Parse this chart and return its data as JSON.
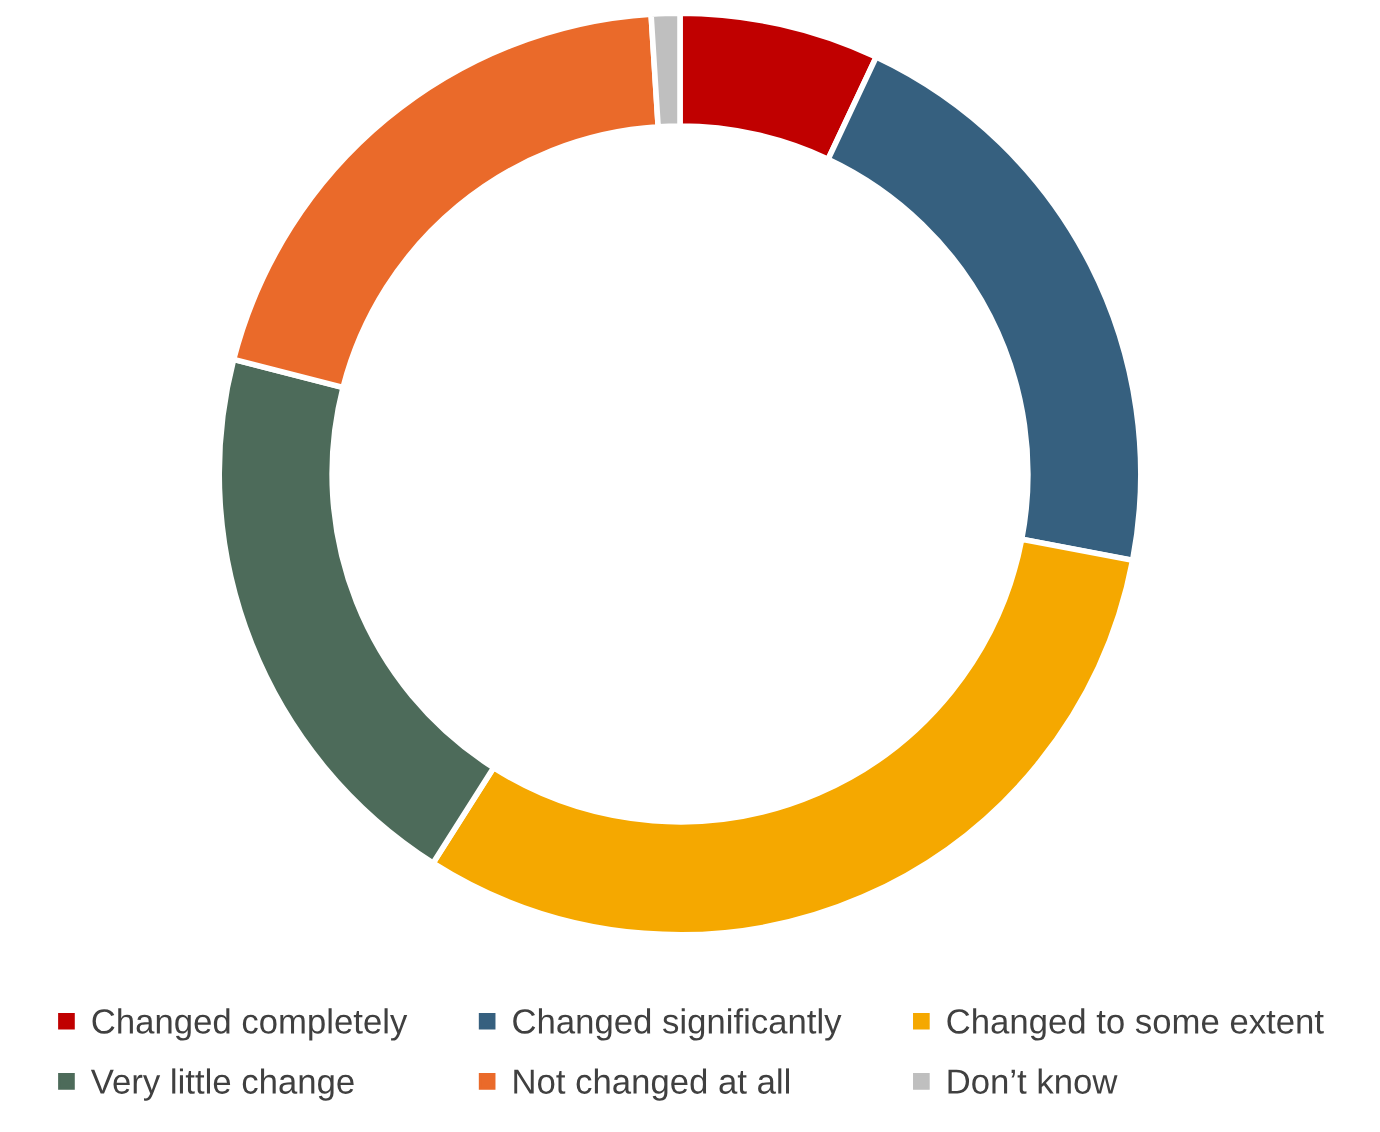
{
  "chart_data": {
    "type": "donut",
    "categories": [
      "Changed completely",
      "Changed significantly",
      "Changed to some extent",
      "Very little change",
      "Not changed at all",
      "Don’t know"
    ],
    "values": [
      7,
      21,
      31,
      20,
      20,
      1
    ],
    "colors": [
      "#c00000",
      "#36607f",
      "#f5a800",
      "#4d6b5a",
      "#ea6a2a",
      "#bfbfbf"
    ],
    "legend": "bottom"
  }
}
